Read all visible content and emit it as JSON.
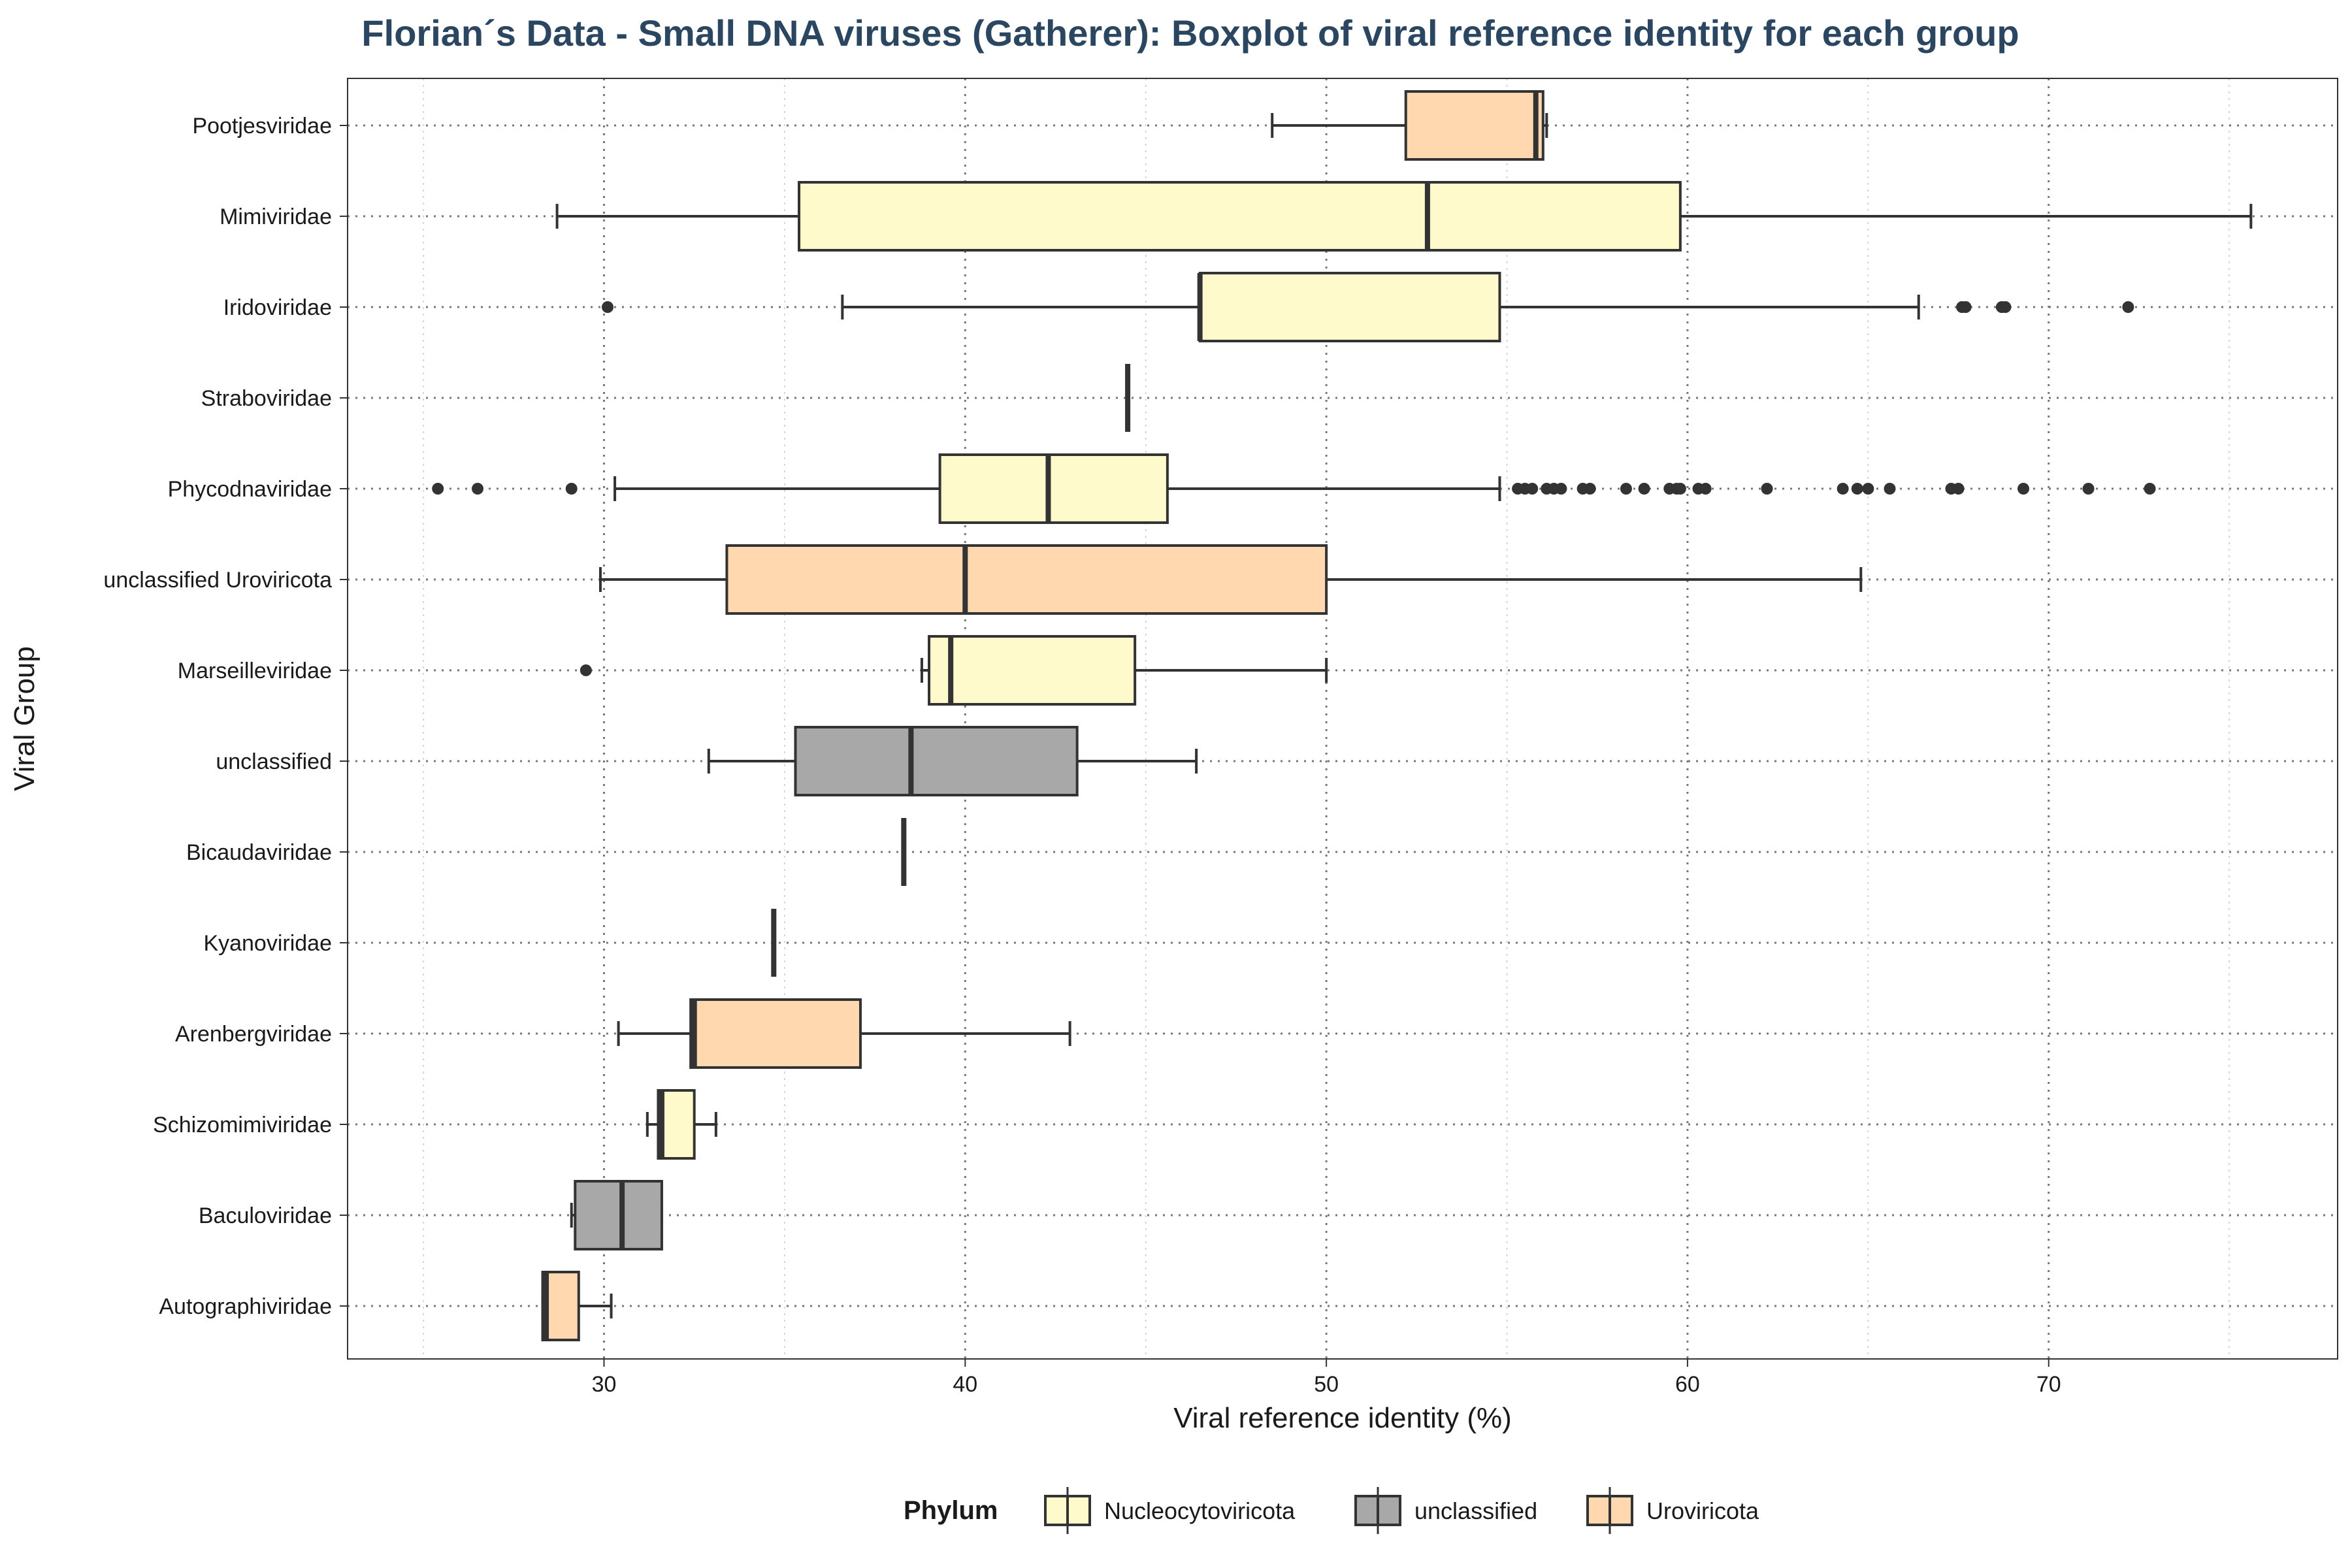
{
  "chart_data": {
    "type": "boxplot",
    "title": "Florian´s Data - Small DNA viruses (Gatherer): Boxplot of viral reference identity for each group",
    "xlabel": "Viral reference identity (%)",
    "ylabel": "Viral Group",
    "xlim": [
      22.9,
      78.0
    ],
    "xticks": [
      30,
      40,
      50,
      60,
      70
    ],
    "grid": true,
    "legend": {
      "title": "Phylum",
      "position": "bottom",
      "entries": [
        {
          "name": "Nucleocytoviricota",
          "color": "#FFFACC"
        },
        {
          "name": "unclassified",
          "color": "#A8A8A8"
        },
        {
          "name": "Uroviricota",
          "color": "#FFD8B0"
        }
      ]
    },
    "groups": [
      {
        "name": "Pootjesviridae",
        "phylum": "Uroviricota",
        "min": 48.5,
        "q1": 52.2,
        "median": 55.8,
        "q3": 56.0,
        "max": 56.1,
        "outliers": []
      },
      {
        "name": "Mimiviridae",
        "phylum": "Nucleocytoviricota",
        "min": 28.7,
        "q1": 35.4,
        "median": 52.8,
        "q3": 59.8,
        "max": 75.6,
        "outliers": []
      },
      {
        "name": "Iridoviridae",
        "phylum": "Nucleocytoviricota",
        "min": 36.6,
        "q1": 46.5,
        "median": 46.5,
        "q3": 54.8,
        "max": 66.4,
        "outliers": [
          30.1,
          67.6,
          67.7,
          68.7,
          68.8,
          72.2
        ]
      },
      {
        "name": "Straboviridae",
        "phylum": "Uroviricota",
        "min": 44.5,
        "q1": 44.5,
        "median": 44.5,
        "q3": 44.5,
        "max": 44.5,
        "outliers": []
      },
      {
        "name": "Phycodnaviridae",
        "phylum": "Nucleocytoviricota",
        "min": 30.3,
        "q1": 39.3,
        "median": 42.3,
        "q3": 45.6,
        "max": 54.8,
        "outliers": [
          25.4,
          26.5,
          29.1,
          55.3,
          55.5,
          55.7,
          56.1,
          56.3,
          56.5,
          57.1,
          57.3,
          58.3,
          58.8,
          59.5,
          59.7,
          59.8,
          60.3,
          60.5,
          62.2,
          64.3,
          64.7,
          65.0,
          65.6,
          67.3,
          67.5,
          69.3,
          71.1,
          72.8
        ]
      },
      {
        "name": "unclassified Uroviricota",
        "phylum": "Uroviricota",
        "min": 29.9,
        "q1": 33.4,
        "median": 40.0,
        "q3": 50.0,
        "max": 64.8,
        "outliers": []
      },
      {
        "name": "Marseilleviridae",
        "phylum": "Nucleocytoviricota",
        "min": 38.8,
        "q1": 39.0,
        "median": 39.6,
        "q3": 44.7,
        "max": 50.0,
        "outliers": [
          29.5
        ]
      },
      {
        "name": "unclassified",
        "phylum": "unclassified",
        "min": 32.9,
        "q1": 35.3,
        "median": 38.5,
        "q3": 43.1,
        "max": 46.4,
        "outliers": []
      },
      {
        "name": "Bicaudaviridae",
        "phylum": "Uroviricota",
        "min": 38.3,
        "q1": 38.3,
        "median": 38.3,
        "q3": 38.3,
        "max": 38.3,
        "outliers": []
      },
      {
        "name": "Kyanoviridae",
        "phylum": "Uroviricota",
        "min": 34.7,
        "q1": 34.7,
        "median": 34.7,
        "q3": 34.7,
        "max": 34.7,
        "outliers": []
      },
      {
        "name": "Arenbergviridae",
        "phylum": "Uroviricota",
        "min": 30.4,
        "q1": 32.4,
        "median": 32.5,
        "q3": 37.1,
        "max": 42.9,
        "outliers": []
      },
      {
        "name": "Schizomimiviridae",
        "phylum": "Nucleocytoviricota",
        "min": 31.2,
        "q1": 31.5,
        "median": 31.6,
        "q3": 32.5,
        "max": 33.1,
        "outliers": []
      },
      {
        "name": "Baculoviridae",
        "phylum": "unclassified",
        "min": 29.1,
        "q1": 29.2,
        "median": 30.5,
        "q3": 31.6,
        "max": 31.6,
        "outliers": []
      },
      {
        "name": "Autographiviridae",
        "phylum": "Uroviricota",
        "min": 28.3,
        "q1": 28.3,
        "median": 28.4,
        "q3": 29.3,
        "max": 30.2,
        "outliers": []
      }
    ],
    "colors": {
      "title": "#2B4660",
      "box_stroke": "#333333",
      "outlier": "#333333"
    }
  }
}
